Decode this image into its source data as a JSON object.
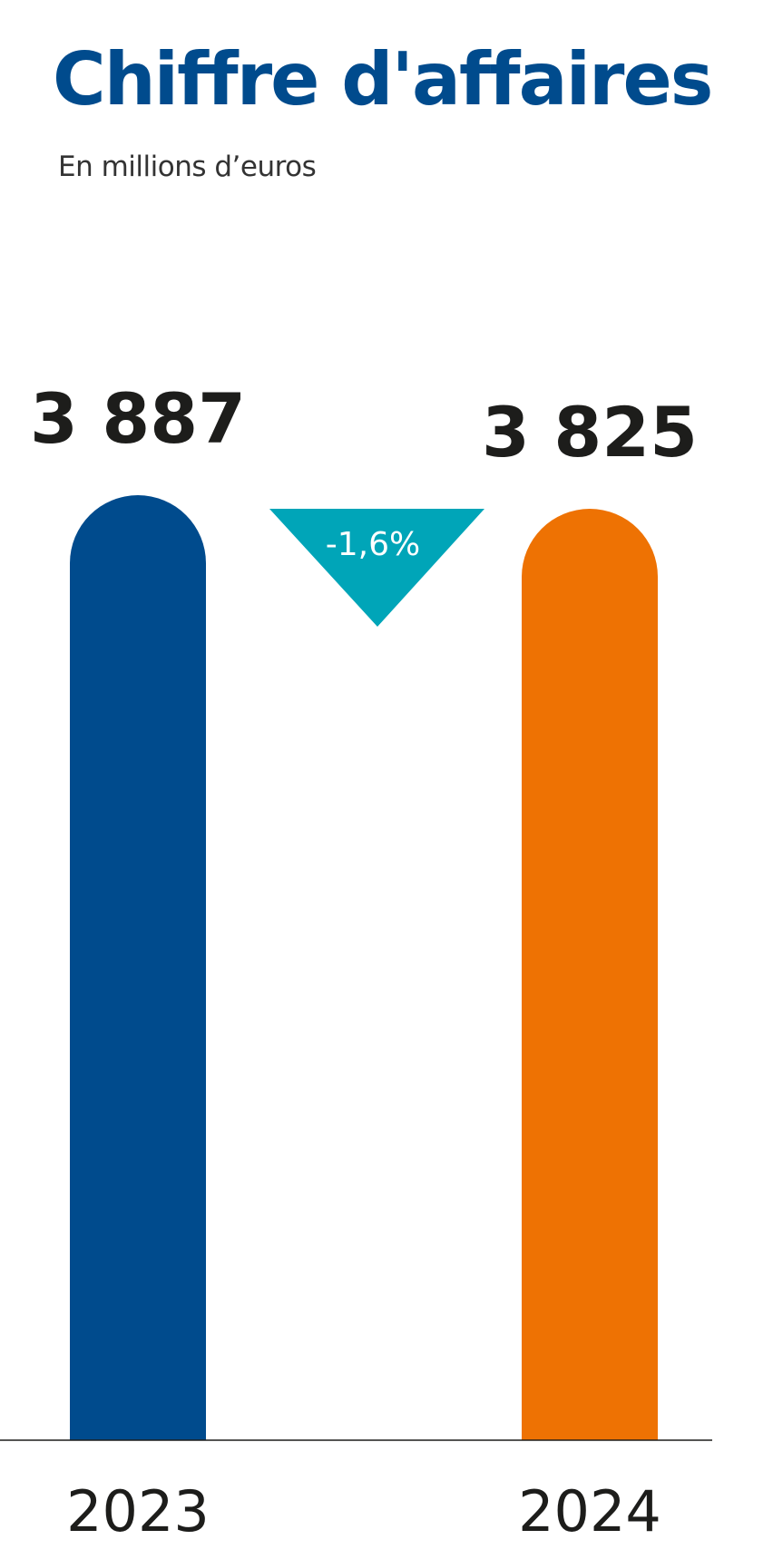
{
  "chart_data": {
    "type": "bar",
    "title": "Chiffre d'affaires",
    "subtitle": "En millions d’euros",
    "categories": [
      "2023",
      "2024"
    ],
    "values": [
      3887,
      3825
    ],
    "value_labels": [
      "3 887",
      "3 825"
    ],
    "change_label": "-1,6%",
    "colors": {
      "title": "#004b8d",
      "bars": [
        "#004b8d",
        "#ee7203"
      ],
      "change_badge": "#00a5b8",
      "value_text": "#1d1d1b",
      "axis_text": "#1d1d1b"
    }
  }
}
